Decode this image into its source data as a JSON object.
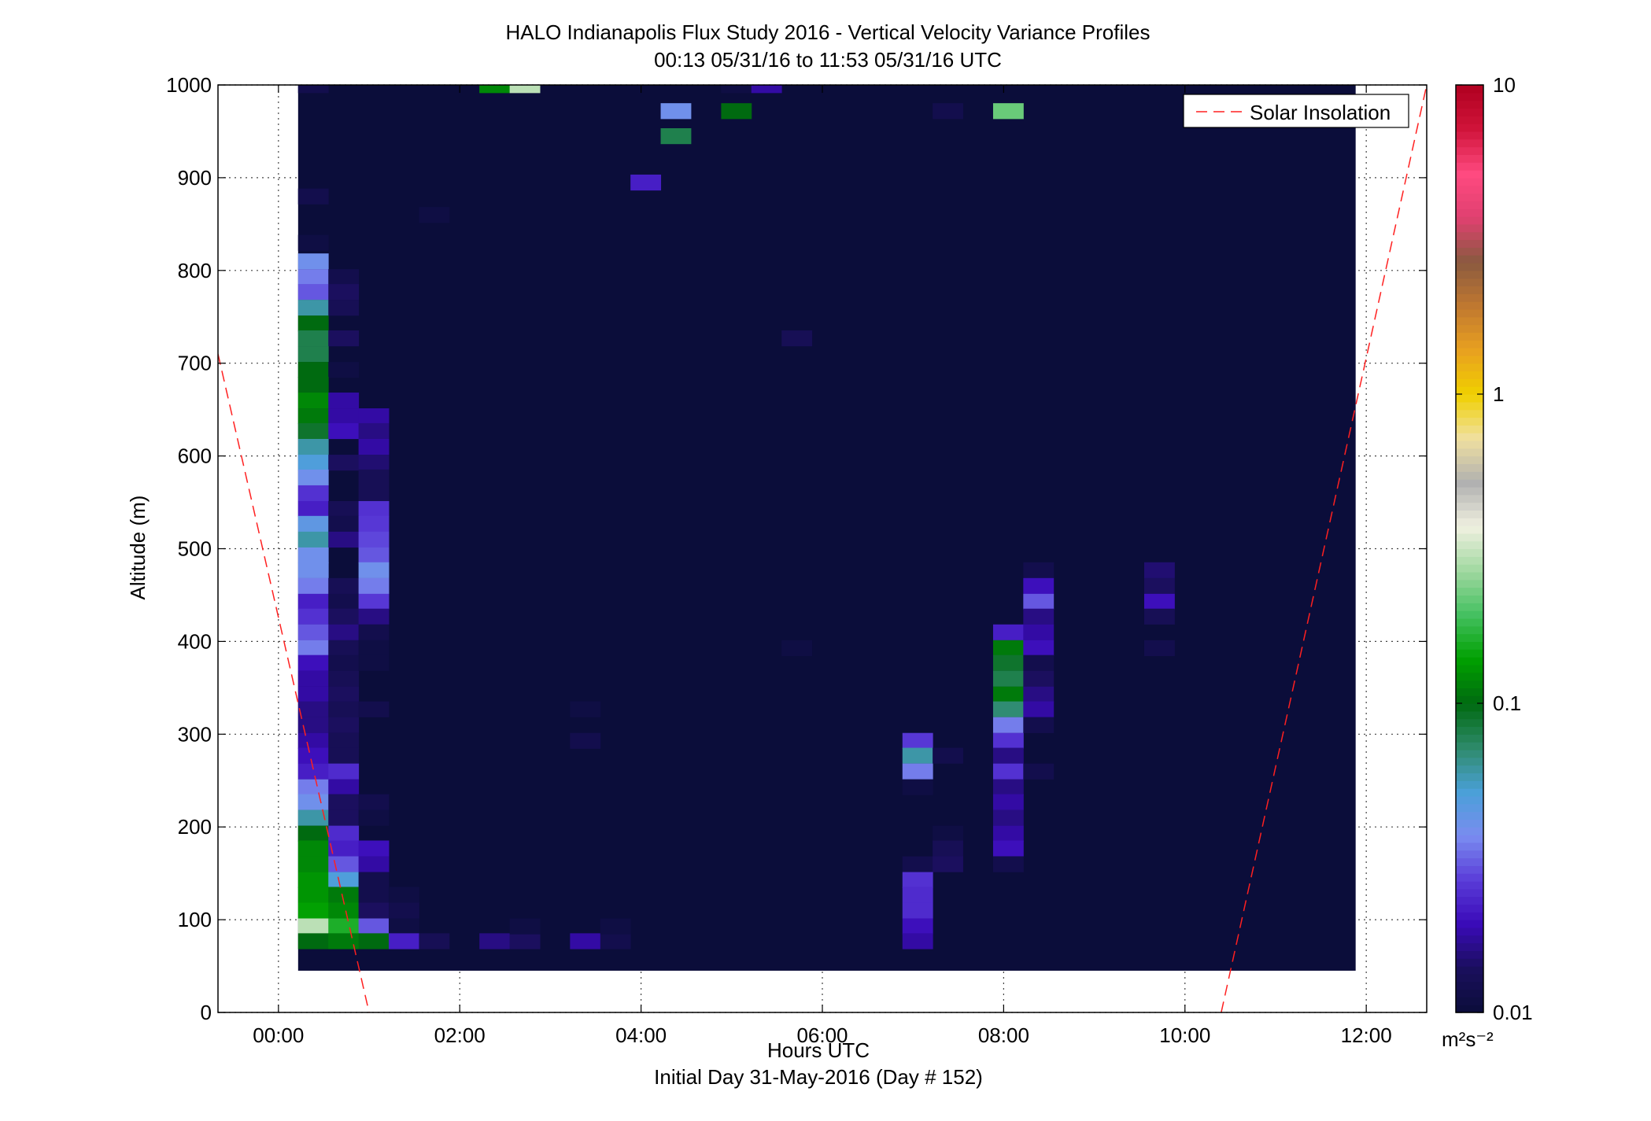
{
  "chart_data": {
    "type": "heatmap",
    "title": "HALO Indianapolis Flux Study 2016 - Vertical Velocity Variance Profiles",
    "subtitle": "00:13 05/31/16 to 11:53 05/31/16  UTC",
    "xlabel": "Hours UTC",
    "xlabel_sub": "Initial Day 31-May-2016 (Day # 152)",
    "ylabel": "Altitude (m)",
    "x_range_hours": [
      -0.667,
      12.667
    ],
    "y_range_m": [
      0,
      1000
    ],
    "x_ticks": [
      {
        "value": 0,
        "label": "00:00"
      },
      {
        "value": 2,
        "label": "02:00"
      },
      {
        "value": 4,
        "label": "04:00"
      },
      {
        "value": 6,
        "label": "06:00"
      },
      {
        "value": 8,
        "label": "08:00"
      },
      {
        "value": 10,
        "label": "10:00"
      },
      {
        "value": 12,
        "label": "12:00"
      }
    ],
    "y_ticks": [
      {
        "value": 0,
        "label": "0"
      },
      {
        "value": 100,
        "label": "100"
      },
      {
        "value": 200,
        "label": "200"
      },
      {
        "value": 300,
        "label": "300"
      },
      {
        "value": 400,
        "label": "400"
      },
      {
        "value": 500,
        "label": "500"
      },
      {
        "value": 600,
        "label": "600"
      },
      {
        "value": 700,
        "label": "700"
      },
      {
        "value": 800,
        "label": "800"
      },
      {
        "value": 900,
        "label": "900"
      },
      {
        "value": 1000,
        "label": "1000"
      }
    ],
    "grid": true,
    "data_extent": {
      "time_start": 0.217,
      "time_end": 11.883,
      "alt_min": 45,
      "alt_max": 1000
    },
    "cell_time_step_hours": 0.333,
    "cell_alt_step_m": 16.7,
    "background_value": 0.01,
    "colorbar": {
      "scale": "log",
      "min": 0.01,
      "max": 10,
      "unit_label": "m²s⁻²",
      "ticks": [
        {
          "value": 0.01,
          "label": "0.01"
        },
        {
          "value": 0.1,
          "label": "0.1"
        },
        {
          "value": 1,
          "label": "1"
        },
        {
          "value": 10,
          "label": "10"
        }
      ],
      "stops": [
        "#0b0d3a",
        "#1a0f5c",
        "#3a0ab8",
        "#5a3cd8",
        "#7a8cf0",
        "#4aa0d8",
        "#2e8a6a",
        "#006a10",
        "#00a000",
        "#44c060",
        "#a0d8a0",
        "#f0f0e0",
        "#b0b0b0",
        "#f0e0a0",
        "#f0d000",
        "#e8a020",
        "#c07830",
        "#8a5a40",
        "#e04070",
        "#ff4a80",
        "#d0143a",
        "#b00020"
      ]
    },
    "legend": {
      "position": "top-right",
      "entries": [
        "Solar Insolation"
      ]
    },
    "solar_insolation_line": {
      "color": "#ff2020",
      "style": "dashed",
      "points_morning": [
        [
          -0.667,
          710
        ],
        [
          1.0,
          0
        ]
      ],
      "points_evening": [
        [
          10.4,
          0
        ],
        [
          12.667,
          1000
        ]
      ]
    },
    "cells": [
      [
        0.383,
        1000,
        0.012
      ],
      [
        2.383,
        1000,
        0.12
      ],
      [
        2.717,
        1000,
        0.3
      ],
      [
        5.05,
        1000,
        0.011
      ],
      [
        5.383,
        1000,
        0.018
      ],
      [
        4.383,
        972,
        0.04
      ],
      [
        5.05,
        972,
        0.1
      ],
      [
        7.383,
        972,
        0.012
      ],
      [
        8.05,
        972,
        0.22
      ],
      [
        4.383,
        945,
        0.08
      ],
      [
        4.05,
        895,
        0.022
      ],
      [
        0.383,
        880,
        0.012
      ],
      [
        1.717,
        860,
        0.011
      ],
      [
        0.383,
        830,
        0.011
      ],
      [
        0.383,
        810,
        0.04
      ],
      [
        0.383,
        793,
        0.035
      ],
      [
        0.717,
        793,
        0.012
      ],
      [
        0.383,
        777,
        0.03
      ],
      [
        0.717,
        777,
        0.014
      ],
      [
        0.383,
        760,
        0.06
      ],
      [
        0.717,
        760,
        0.013
      ],
      [
        0.383,
        743,
        0.1
      ],
      [
        0.383,
        727,
        0.08
      ],
      [
        0.717,
        727,
        0.014
      ],
      [
        5.717,
        727,
        0.013
      ],
      [
        0.383,
        710,
        0.08
      ],
      [
        0.383,
        693,
        0.1
      ],
      [
        0.717,
        693,
        0.011
      ],
      [
        0.383,
        677,
        0.1
      ],
      [
        0.383,
        660,
        0.12
      ],
      [
        0.717,
        660,
        0.018
      ],
      [
        0.383,
        643,
        0.11
      ],
      [
        0.717,
        643,
        0.018
      ],
      [
        1.05,
        643,
        0.018
      ],
      [
        0.383,
        627,
        0.09
      ],
      [
        0.717,
        627,
        0.02
      ],
      [
        1.05,
        627,
        0.016
      ],
      [
        0.383,
        610,
        0.06
      ],
      [
        1.05,
        610,
        0.018
      ],
      [
        0.383,
        593,
        0.05
      ],
      [
        0.717,
        593,
        0.014
      ],
      [
        1.05,
        593,
        0.015
      ],
      [
        0.383,
        577,
        0.04
      ],
      [
        1.05,
        577,
        0.013
      ],
      [
        0.383,
        560,
        0.025
      ],
      [
        1.05,
        560,
        0.013
      ],
      [
        0.383,
        543,
        0.022
      ],
      [
        0.717,
        543,
        0.013
      ],
      [
        1.05,
        543,
        0.025
      ],
      [
        0.383,
        527,
        0.045
      ],
      [
        0.717,
        527,
        0.012
      ],
      [
        1.05,
        527,
        0.026
      ],
      [
        0.383,
        510,
        0.06
      ],
      [
        0.717,
        510,
        0.016
      ],
      [
        1.05,
        510,
        0.028
      ],
      [
        0.383,
        493,
        0.04
      ],
      [
        1.05,
        493,
        0.03
      ],
      [
        0.383,
        477,
        0.04
      ],
      [
        1.05,
        477,
        0.04
      ],
      [
        0.383,
        460,
        0.035
      ],
      [
        0.717,
        460,
        0.013
      ],
      [
        1.05,
        460,
        0.035
      ],
      [
        0.383,
        443,
        0.022
      ],
      [
        0.717,
        443,
        0.012
      ],
      [
        1.05,
        443,
        0.026
      ],
      [
        0.383,
        427,
        0.025
      ],
      [
        0.717,
        427,
        0.014
      ],
      [
        1.05,
        427,
        0.016
      ],
      [
        0.383,
        410,
        0.03
      ],
      [
        0.717,
        410,
        0.016
      ],
      [
        1.05,
        410,
        0.012
      ],
      [
        0.383,
        393,
        0.035
      ],
      [
        0.717,
        393,
        0.013
      ],
      [
        1.05,
        393,
        0.011
      ],
      [
        0.383,
        377,
        0.02
      ],
      [
        0.717,
        377,
        0.012
      ],
      [
        1.05,
        377,
        0.011
      ],
      [
        0.383,
        360,
        0.018
      ],
      [
        0.717,
        360,
        0.013
      ],
      [
        0.383,
        343,
        0.018
      ],
      [
        0.717,
        343,
        0.014
      ],
      [
        0.383,
        327,
        0.016
      ],
      [
        0.717,
        327,
        0.013
      ],
      [
        1.05,
        327,
        0.012
      ],
      [
        0.383,
        310,
        0.016
      ],
      [
        0.717,
        310,
        0.014
      ],
      [
        0.383,
        293,
        0.018
      ],
      [
        0.717,
        293,
        0.013
      ],
      [
        0.383,
        277,
        0.02
      ],
      [
        0.717,
        277,
        0.013
      ],
      [
        0.383,
        260,
        0.022
      ],
      [
        0.717,
        260,
        0.024
      ],
      [
        0.383,
        243,
        0.035
      ],
      [
        0.717,
        243,
        0.018
      ],
      [
        0.383,
        227,
        0.04
      ],
      [
        0.717,
        227,
        0.014
      ],
      [
        1.05,
        227,
        0.012
      ],
      [
        0.383,
        210,
        0.06
      ],
      [
        0.717,
        210,
        0.014
      ],
      [
        1.05,
        210,
        0.011
      ],
      [
        0.383,
        193,
        0.1
      ],
      [
        0.717,
        193,
        0.024
      ],
      [
        0.383,
        177,
        0.12
      ],
      [
        0.717,
        177,
        0.022
      ],
      [
        1.05,
        177,
        0.02
      ],
      [
        0.383,
        160,
        0.12
      ],
      [
        0.717,
        160,
        0.03
      ],
      [
        1.05,
        160,
        0.018
      ],
      [
        0.383,
        143,
        0.13
      ],
      [
        0.717,
        143,
        0.05
      ],
      [
        1.05,
        143,
        0.012
      ],
      [
        0.383,
        127,
        0.13
      ],
      [
        0.717,
        127,
        0.11
      ],
      [
        1.05,
        127,
        0.012
      ],
      [
        1.383,
        127,
        0.011
      ],
      [
        0.383,
        110,
        0.14
      ],
      [
        0.717,
        110,
        0.12
      ],
      [
        1.05,
        110,
        0.014
      ],
      [
        1.383,
        110,
        0.012
      ],
      [
        0.383,
        93,
        0.3
      ],
      [
        0.717,
        93,
        0.16
      ],
      [
        1.05,
        93,
        0.03
      ],
      [
        1.383,
        93,
        0.011
      ],
      [
        0.383,
        77,
        0.1
      ],
      [
        0.717,
        77,
        0.11
      ],
      [
        1.05,
        77,
        0.1
      ],
      [
        1.383,
        77,
        0.022
      ],
      [
        1.717,
        77,
        0.013
      ],
      [
        2.383,
        77,
        0.016
      ],
      [
        2.717,
        77,
        0.014
      ],
      [
        3.383,
        77,
        0.018
      ],
      [
        3.717,
        77,
        0.012
      ],
      [
        2.717,
        93,
        0.011
      ],
      [
        3.717,
        93,
        0.011
      ],
      [
        3.383,
        327,
        0.011
      ],
      [
        3.383,
        293,
        0.012
      ],
      [
        5.717,
        393,
        0.011
      ],
      [
        7.05,
        293,
        0.026
      ],
      [
        7.05,
        277,
        0.06
      ],
      [
        7.383,
        277,
        0.012
      ],
      [
        7.05,
        260,
        0.035
      ],
      [
        7.05,
        243,
        0.011
      ],
      [
        7.383,
        193,
        0.011
      ],
      [
        7.383,
        177,
        0.013
      ],
      [
        7.05,
        160,
        0.012
      ],
      [
        7.383,
        160,
        0.014
      ],
      [
        7.05,
        143,
        0.025
      ],
      [
        7.05,
        127,
        0.024
      ],
      [
        7.05,
        110,
        0.024
      ],
      [
        7.05,
        93,
        0.02
      ],
      [
        7.05,
        77,
        0.018
      ],
      [
        8.05,
        410,
        0.022
      ],
      [
        8.05,
        393,
        0.11
      ],
      [
        8.05,
        377,
        0.09
      ],
      [
        8.05,
        360,
        0.08
      ],
      [
        8.05,
        343,
        0.11
      ],
      [
        8.05,
        327,
        0.07
      ],
      [
        8.05,
        310,
        0.035
      ],
      [
        8.05,
        293,
        0.025
      ],
      [
        8.05,
        277,
        0.016
      ],
      [
        8.05,
        260,
        0.025
      ],
      [
        8.05,
        243,
        0.016
      ],
      [
        8.05,
        227,
        0.018
      ],
      [
        8.05,
        210,
        0.016
      ],
      [
        8.05,
        193,
        0.018
      ],
      [
        8.05,
        177,
        0.02
      ],
      [
        8.05,
        160,
        0.012
      ],
      [
        8.383,
        477,
        0.012
      ],
      [
        8.383,
        460,
        0.02
      ],
      [
        8.383,
        443,
        0.03
      ],
      [
        8.383,
        427,
        0.016
      ],
      [
        8.383,
        410,
        0.018
      ],
      [
        8.383,
        393,
        0.02
      ],
      [
        8.383,
        377,
        0.012
      ],
      [
        8.383,
        360,
        0.014
      ],
      [
        8.383,
        343,
        0.016
      ],
      [
        8.383,
        327,
        0.018
      ],
      [
        8.383,
        310,
        0.012
      ],
      [
        8.383,
        260,
        0.012
      ],
      [
        9.717,
        477,
        0.015
      ],
      [
        9.717,
        460,
        0.014
      ],
      [
        9.717,
        443,
        0.02
      ],
      [
        9.717,
        427,
        0.013
      ],
      [
        9.717,
        393,
        0.012
      ]
    ]
  }
}
